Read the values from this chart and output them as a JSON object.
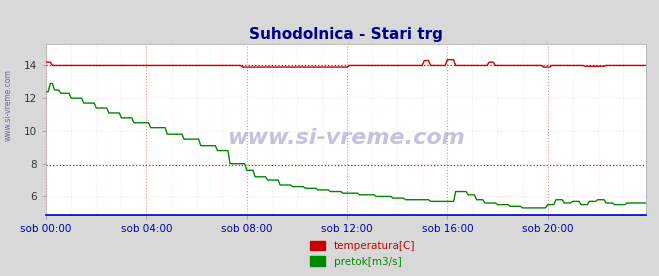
{
  "title": "Suhodolnica - Stari trg",
  "title_color": "#00008B",
  "title_fontsize": 11,
  "bg_color": "#d8d8d8",
  "plot_bg_color": "#ffffff",
  "watermark": "www.si-vreme.com",
  "watermark_color": "#aaaacc",
  "x_tick_labels": [
    "sob 00:00",
    "sob 04:00",
    "sob 08:00",
    "sob 12:00",
    "sob 16:00",
    "sob 20:00"
  ],
  "x_tick_positions": [
    0,
    48,
    96,
    144,
    192,
    240
  ],
  "ylim_min": 5.0,
  "ylim_max": 15.0,
  "xlim_min": 0,
  "xlim_max": 287,
  "yticks": [
    6,
    8,
    10,
    12,
    14
  ],
  "legend_labels": [
    "temperatura[C]",
    "pretok[m3/s]"
  ],
  "legend_colors": [
    "#cc0000",
    "#008800"
  ],
  "temp_color": "#cc0000",
  "flow_color": "#008800",
  "bottom_line_color": "#0000cc",
  "temp_avg": 14.0,
  "flow_avg": 7.9,
  "left_label": "www.si-vreme.com",
  "left_label_color": "#6666aa",
  "xlabel_color": "#0000aa",
  "tick_color": "#333333"
}
